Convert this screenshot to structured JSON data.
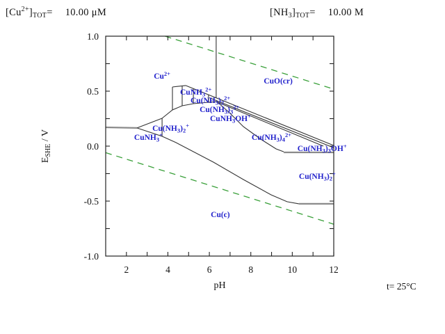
{
  "header": {
    "left": {
      "frags": [
        {
          "t": "[Cu",
          "f": "n"
        },
        {
          "t": "2+",
          "f": "sup"
        },
        {
          "t": "]",
          "f": "n"
        },
        {
          "t": "TOT",
          "f": "sub"
        },
        {
          "t": "=",
          "f": "n"
        }
      ],
      "value": "10.00 μM"
    },
    "right": {
      "frags": [
        {
          "t": "[NH",
          "f": "n"
        },
        {
          "t": "3",
          "f": "sub"
        },
        {
          "t": "]",
          "f": "n"
        },
        {
          "t": "TOT",
          "f": "sub"
        },
        {
          "t": "=",
          "f": "n"
        }
      ],
      "value": "10.00 M"
    }
  },
  "footer": {
    "temperature": "t= 25°C"
  },
  "chart_data": {
    "type": "pourbaix-diagram",
    "system": "Cu - NH3 predominance (E vs pH)",
    "colors": {
      "species_label": "#2222cc",
      "boundary": "#333333",
      "boundary_gray": "#8a8a8a",
      "water_guide": "#3aa03a",
      "frame": "#222222"
    },
    "axes": {
      "x": {
        "label": "pH",
        "min": 1,
        "max": 12,
        "ticks_all": [
          2,
          3,
          4,
          5,
          6,
          7,
          8,
          9,
          10,
          11,
          12
        ],
        "ticks_labeled": [
          {
            "v": 2,
            "t": "2"
          },
          {
            "v": 4,
            "t": "4"
          },
          {
            "v": 6,
            "t": "6"
          },
          {
            "v": 8,
            "t": "8"
          },
          {
            "v": 10,
            "t": "10"
          },
          {
            "v": 12,
            "t": "12"
          }
        ]
      },
      "y": {
        "label_frags": [
          {
            "t": "E",
            "f": "n"
          },
          {
            "t": "SHE",
            "f": "sub"
          },
          {
            "t": " / V",
            "f": "n"
          }
        ],
        "min": -1.0,
        "max": 1.0,
        "ticks_all": [
          -0.75,
          -0.5,
          -0.25,
          0,
          0.25,
          0.5,
          0.75
        ],
        "ticks_labeled": [
          {
            "v": 1.0,
            "t": "1.0"
          },
          {
            "v": 0.5,
            "t": "0.5"
          },
          {
            "v": 0.0,
            "t": "0.0"
          },
          {
            "v": -0.5,
            "t": "-0.5"
          },
          {
            "v": -1.0,
            "t": "-1.0"
          }
        ]
      }
    },
    "water_guides": [
      {
        "name": "oxygen-o2-h2o-line",
        "dashed": true,
        "points": [
          [
            3.868,
            1.0
          ],
          [
            12,
            0.5186
          ]
        ]
      },
      {
        "name": "hydrogen-h2-h2o-line",
        "dashed": true,
        "points": [
          [
            1,
            -0.0592
          ],
          [
            12,
            -0.7104
          ]
        ]
      }
    ],
    "boundaries": [
      {
        "name": "cu2-cu-left-horizontal",
        "style": "thick-gray",
        "points": [
          [
            1,
            0.171
          ],
          [
            2.51,
            0.165
          ]
        ]
      },
      {
        "name": "triangle-upper",
        "style": "thin",
        "points": [
          [
            2.51,
            0.165
          ],
          [
            3.72,
            0.253
          ]
        ]
      },
      {
        "name": "triangle-lower",
        "style": "thin",
        "points": [
          [
            2.51,
            0.165
          ],
          [
            3.72,
            0.089
          ]
        ]
      },
      {
        "name": "triangle-right-vertical",
        "style": "thin",
        "points": [
          [
            3.72,
            0.253
          ],
          [
            3.72,
            0.089
          ]
        ]
      },
      {
        "name": "ammine-wedge-lower",
        "style": "thin",
        "points": [
          [
            3.72,
            0.253
          ],
          [
            4.22,
            0.329
          ],
          [
            4.69,
            0.367
          ],
          [
            5.23,
            0.386
          ],
          [
            5.96,
            0.399
          ],
          [
            6.4,
            0.405
          ]
        ]
      },
      {
        "name": "box-left-vertical",
        "style": "thin",
        "points": [
          [
            4.22,
            0.538
          ],
          [
            4.22,
            0.329
          ]
        ]
      },
      {
        "name": "box-top",
        "style": "thin",
        "points": [
          [
            4.22,
            0.538
          ],
          [
            4.86,
            0.551
          ]
        ]
      },
      {
        "name": "cu2-cuo-ammine-upper",
        "style": "thin",
        "points": [
          [
            4.86,
            0.551
          ],
          [
            12,
            0.006
          ]
        ]
      },
      {
        "name": "ammine-band-line-2",
        "style": "thin",
        "points": [
          [
            6.0,
            0.44
          ],
          [
            12,
            -0.015
          ]
        ]
      },
      {
        "name": "ammine-band-line-3",
        "style": "thin",
        "points": [
          [
            6.4,
            0.399
          ],
          [
            11.5,
            0.0
          ]
        ]
      },
      {
        "name": "divider-cunh3-cunh3-2",
        "style": "thin",
        "points": [
          [
            4.69,
            0.544
          ],
          [
            4.69,
            0.367
          ]
        ]
      },
      {
        "name": "divider-cunh3-2-cunh3-3",
        "style": "thin",
        "points": [
          [
            5.23,
            0.525
          ],
          [
            5.23,
            0.386
          ]
        ]
      },
      {
        "name": "divider-cunh3-3-cunh3oh",
        "style": "thin",
        "points": [
          [
            5.96,
            0.468
          ],
          [
            5.96,
            0.399
          ]
        ]
      },
      {
        "name": "cu2-cuo-vertical",
        "style": "thin",
        "points": [
          [
            6.33,
            1.0
          ],
          [
            6.33,
            0.437
          ]
        ]
      },
      {
        "name": "cunh34-cunh32-curve",
        "style": "thin",
        "points": [
          [
            6.4,
            0.399
          ],
          [
            6.97,
            0.304
          ],
          [
            7.64,
            0.177
          ],
          [
            8.48,
            0.063
          ],
          [
            9.22,
            -0.025
          ],
          [
            9.59,
            -0.051
          ]
        ]
      },
      {
        "name": "cunh33oh-cunh32-horizontal",
        "style": "thick-gray",
        "points": [
          [
            9.59,
            -0.057
          ],
          [
            12,
            -0.057
          ]
        ]
      },
      {
        "name": "cu-metal-upper-curve",
        "style": "thin",
        "points": [
          [
            3.72,
            0.089
          ],
          [
            4.39,
            0.032
          ],
          [
            6.2,
            -0.146
          ],
          [
            7.64,
            -0.304
          ],
          [
            8.98,
            -0.443
          ],
          [
            9.75,
            -0.506
          ],
          [
            10.32,
            -0.525
          ]
        ]
      },
      {
        "name": "cu-metal-flat-right",
        "style": "thick-gray",
        "points": [
          [
            10.32,
            -0.525
          ],
          [
            12,
            -0.525
          ]
        ]
      }
    ],
    "regions": [
      {
        "name": "region-cu2",
        "anchor": "middle",
        "pH": 3.72,
        "E": 0.639,
        "frags": [
          {
            "t": "Cu",
            "f": "n"
          },
          {
            "t": "2+",
            "f": "sup"
          }
        ]
      },
      {
        "name": "region-cuo-cr",
        "anchor": "middle",
        "pH": 9.32,
        "E": 0.595,
        "frags": [
          {
            "t": "CuO(cr)",
            "f": "n"
          }
        ]
      },
      {
        "name": "region-cunh3-2p",
        "anchor": "start",
        "pH": 4.59,
        "E": 0.494,
        "frags": [
          {
            "t": "CuNH",
            "f": "n"
          },
          {
            "t": "3",
            "f": "sub"
          },
          {
            "t": "2+",
            "f": "sup"
          }
        ]
      },
      {
        "name": "region-cunh32-2p",
        "anchor": "start",
        "pH": 5.09,
        "E": 0.418,
        "frags": [
          {
            "t": "Cu(NH",
            "f": "n"
          },
          {
            "t": "3",
            "f": "sub"
          },
          {
            "t": ")",
            "f": "n"
          },
          {
            "t": "2",
            "f": "sub"
          },
          {
            "t": "2+",
            "f": "sup"
          }
        ]
      },
      {
        "name": "region-cunh33-2p",
        "anchor": "start",
        "pH": 5.53,
        "E": 0.335,
        "frags": [
          {
            "t": "Cu(NH",
            "f": "n"
          },
          {
            "t": "3",
            "f": "sub"
          },
          {
            "t": ")",
            "f": "n"
          },
          {
            "t": "3",
            "f": "sub"
          },
          {
            "t": "2+",
            "f": "sup"
          }
        ]
      },
      {
        "name": "region-cunh3oh-p",
        "anchor": "start",
        "pH": 6.03,
        "E": 0.253,
        "frags": [
          {
            "t": "CuNH",
            "f": "n"
          },
          {
            "t": "3",
            "f": "sub"
          },
          {
            "t": "OH",
            "f": "n"
          },
          {
            "t": "+",
            "f": "sup"
          }
        ]
      },
      {
        "name": "region-cunh32-p-left",
        "anchor": "start",
        "pH": 3.25,
        "E": 0.165,
        "frags": [
          {
            "t": "Cu(NH",
            "f": "n"
          },
          {
            "t": "3",
            "f": "sub"
          },
          {
            "t": ")",
            "f": "n"
          },
          {
            "t": "2",
            "f": "sub"
          },
          {
            "t": "+",
            "f": "sup"
          }
        ]
      },
      {
        "name": "region-cunh3-p",
        "anchor": "start",
        "pH": 2.37,
        "E": 0.082,
        "frags": [
          {
            "t": "CuNH",
            "f": "n"
          },
          {
            "t": "3",
            "f": "sub"
          },
          {
            "t": "+",
            "f": "sup"
          }
        ]
      },
      {
        "name": "region-cunh34-2p",
        "anchor": "start",
        "pH": 8.04,
        "E": 0.082,
        "frags": [
          {
            "t": "Cu(NH",
            "f": "n"
          },
          {
            "t": "3",
            "f": "sub"
          },
          {
            "t": ")",
            "f": "n"
          },
          {
            "t": "4",
            "f": "sub"
          },
          {
            "t": "2+",
            "f": "sup"
          }
        ]
      },
      {
        "name": "region-cunh33oh-p",
        "anchor": "start",
        "pH": 10.25,
        "E": -0.019,
        "frags": [
          {
            "t": "Cu(NH",
            "f": "n"
          },
          {
            "t": "3",
            "f": "sub"
          },
          {
            "t": ")",
            "f": "n"
          },
          {
            "t": "3",
            "f": "sub"
          },
          {
            "t": "OH",
            "f": "n"
          },
          {
            "t": "+",
            "f": "sup"
          }
        ]
      },
      {
        "name": "region-cunh32-p-right",
        "anchor": "start",
        "pH": 10.32,
        "E": -0.272,
        "frags": [
          {
            "t": "Cu(NH",
            "f": "n"
          },
          {
            "t": "3",
            "f": "sub"
          },
          {
            "t": ")",
            "f": "n"
          },
          {
            "t": "2",
            "f": "sub"
          },
          {
            "t": "+",
            "f": "sup"
          }
        ]
      },
      {
        "name": "region-cu-metal",
        "anchor": "middle",
        "pH": 6.53,
        "E": -0.62,
        "frags": [
          {
            "t": "Cu(c)",
            "f": "n"
          }
        ]
      }
    ]
  }
}
